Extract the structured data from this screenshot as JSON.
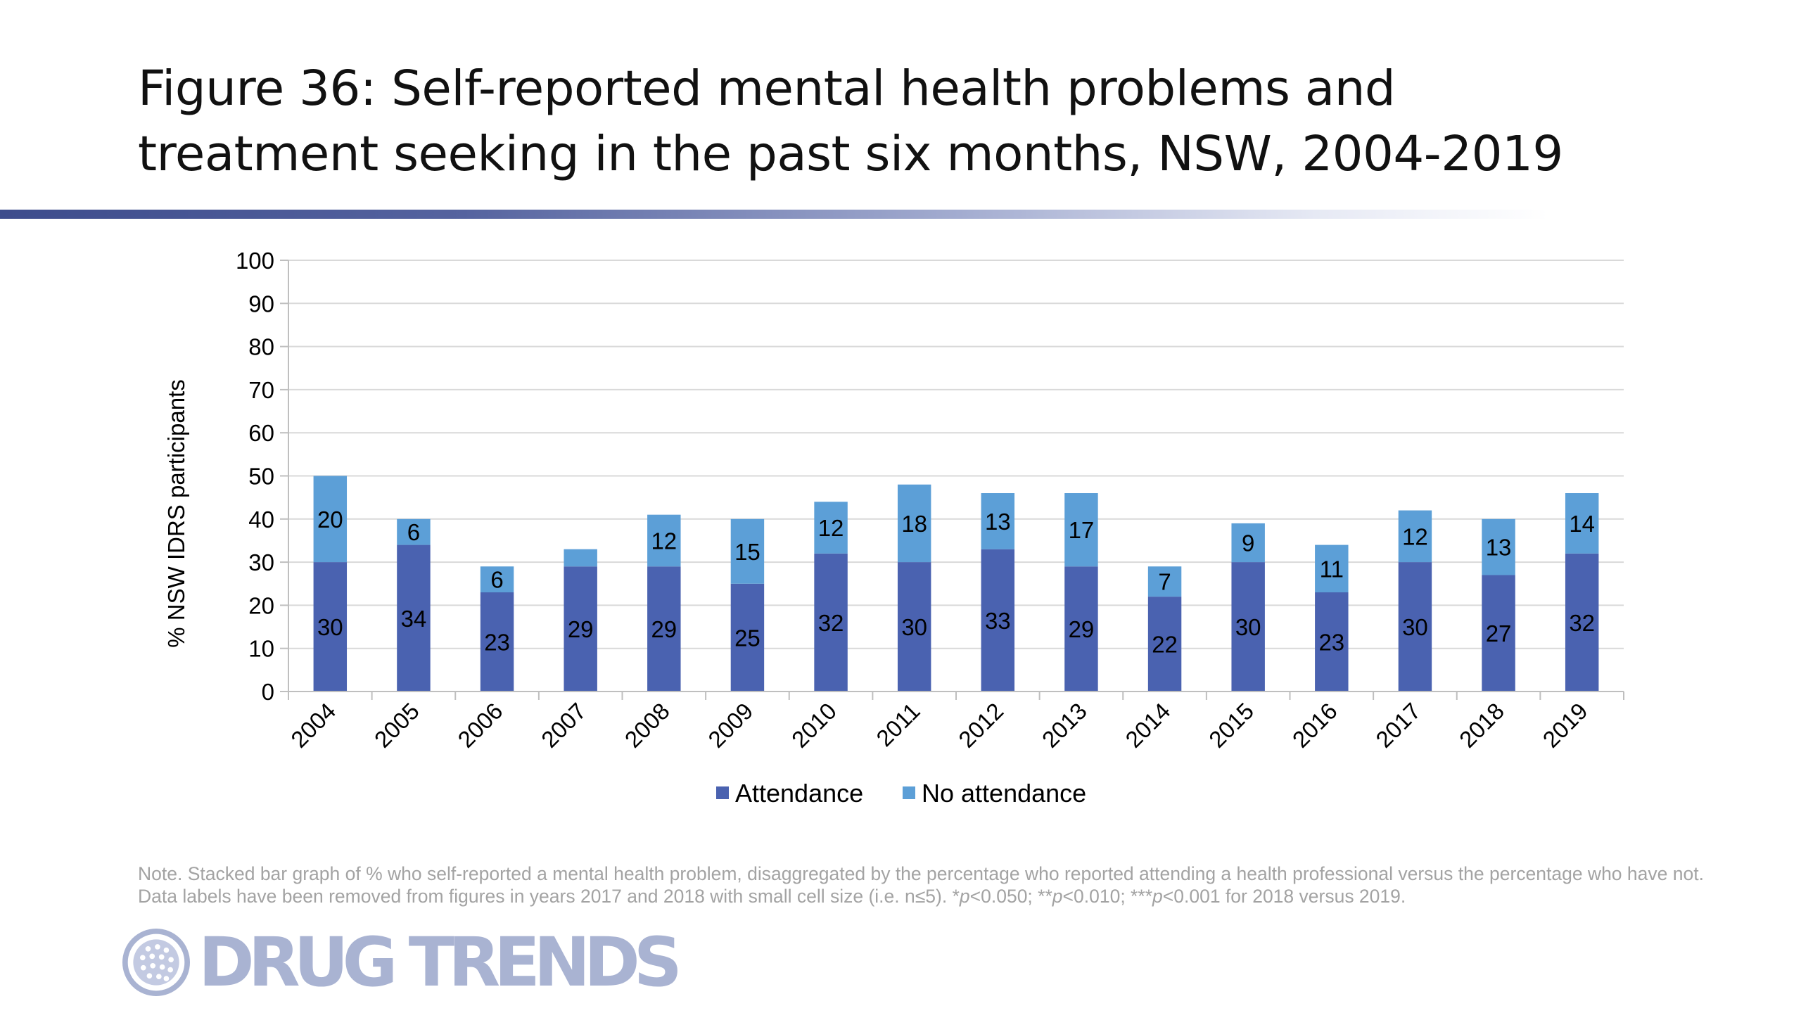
{
  "title": "Figure 36: Self-reported mental health problems and treatment seeking in the past six months, NSW, 2004-2019",
  "note": {
    "prefix": "Note. Stacked bar graph of % who self-reported a mental health problem, disaggregated by the percentage who reported attending a health professional versus the percentage who have not. Data labels have been removed from figures in years 2017 and 2018 with small cell size (i.e. n≤5).  *",
    "p1": "p",
    "mid1": "<0.050; **",
    "p2": "p",
    "mid2": "<0.010; ***",
    "p3": "p",
    "suffix": "<0.001 for 2018 versus 2019."
  },
  "logo": {
    "text": "DRUG TRENDS",
    "icon": "globe-icon"
  },
  "colors": {
    "attendance": "#4a62b0",
    "no_attendance": "#5c9fd7",
    "gridline": "#d9d9d9",
    "axis": "#bfbfbf"
  },
  "chart_data": {
    "type": "bar",
    "stacked": true,
    "title": "",
    "xlabel": "",
    "ylabel": "% NSW IDRS participants",
    "ylim": [
      0,
      100
    ],
    "yticks": [
      0,
      10,
      20,
      30,
      40,
      50,
      60,
      70,
      80,
      90,
      100
    ],
    "grid": true,
    "legend_position": "bottom",
    "categories": [
      "2004",
      "2005",
      "2006",
      "2007",
      "2008",
      "2009",
      "2010",
      "2011",
      "2012",
      "2013",
      "2014",
      "2015",
      "2016",
      "2017",
      "2018",
      "2019"
    ],
    "series": [
      {
        "name": "Attendance",
        "values": [
          30,
          34,
          23,
          29,
          29,
          25,
          32,
          30,
          33,
          29,
          22,
          30,
          23,
          30,
          27,
          32
        ],
        "labels": [
          "30",
          "34",
          "23",
          "29",
          "29",
          "25",
          "32",
          "30",
          "33",
          "29",
          "22",
          "30",
          "23",
          "30",
          "27",
          "32"
        ]
      },
      {
        "name": "No attendance",
        "values": [
          20,
          6,
          6,
          4,
          12,
          15,
          12,
          18,
          13,
          17,
          7,
          9,
          11,
          12,
          13,
          14
        ],
        "labels": [
          "20",
          "6",
          "6",
          "",
          "12",
          "15",
          "12",
          "18",
          "13",
          "17",
          "7",
          "9",
          "11",
          "12",
          "13",
          "14"
        ]
      }
    ]
  }
}
